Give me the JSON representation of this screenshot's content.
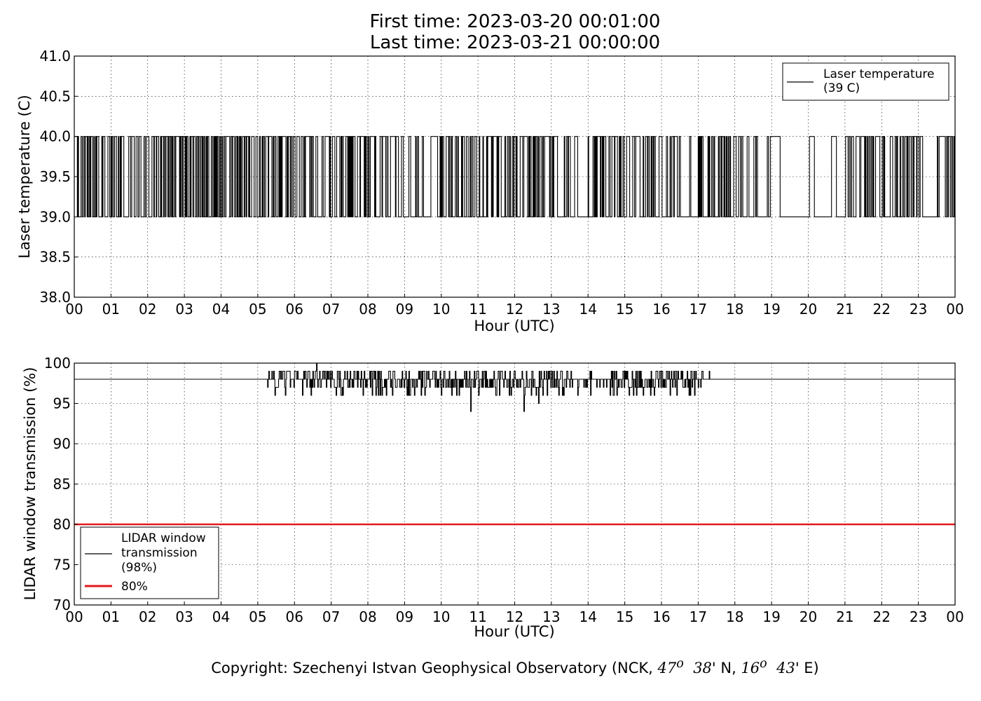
{
  "title_line1": "First time: 2023-03-20 00:01:00",
  "title_line2": "Last time: 2023-03-21 00:00:00",
  "copyright": {
    "prefix": "Copyright: Szechenyi Istvan Geophysical Observatory (NCK, ",
    "lat_deg": "47",
    "lat_min": "38",
    "lat_suffix": "' N, ",
    "lon_deg": "16",
    "lon_min": "43",
    "lon_suffix": "' E)",
    "degree_mark": "o"
  },
  "chart_data": [
    {
      "type": "line",
      "ylabel": "Laser temperature (C)",
      "xlabel": "Hour (UTC)",
      "xlim": [
        0,
        24
      ],
      "ylim": [
        38.0,
        41.0
      ],
      "x_ticks": [
        "00",
        "01",
        "02",
        "03",
        "04",
        "05",
        "06",
        "07",
        "08",
        "09",
        "10",
        "11",
        "12",
        "13",
        "14",
        "15",
        "16",
        "17",
        "18",
        "19",
        "20",
        "21",
        "22",
        "23",
        "00"
      ],
      "y_ticks": [
        "38.0",
        "38.5",
        "39.0",
        "39.5",
        "40.0",
        "40.5",
        "41.0"
      ],
      "grid": true,
      "legend_position": "top-right",
      "series": [
        {
          "name": "Laser temperature\n(39 C)",
          "color": "#000000",
          "description": "1-minute samples toggling between 39.0 and 40.0; sustained 39.0 around 19.3-20.0 h and 23.1-23.5 h",
          "levels": [
            39.0,
            40.0
          ],
          "density_by_hour": [
            0.9,
            0.75,
            0.85,
            0.8,
            0.9,
            0.7,
            0.6,
            0.8,
            0.5,
            0.4,
            0.7,
            0.9,
            0.85,
            0.5,
            0.9,
            0.6,
            0.45,
            0.8,
            0.7,
            0.25,
            0.05,
            0.7,
            0.6,
            0.7,
            0.35
          ],
          "steady_segments": [
            [
              19.3,
              20.0,
              39.0
            ],
            [
              23.1,
              23.5,
              39.0
            ]
          ]
        }
      ]
    },
    {
      "type": "line",
      "ylabel": "LIDAR window transmission (%)",
      "xlabel": "Hour (UTC)",
      "xlim": [
        0,
        24
      ],
      "ylim": [
        70,
        100
      ],
      "x_ticks": [
        "00",
        "01",
        "02",
        "03",
        "04",
        "05",
        "06",
        "07",
        "08",
        "09",
        "10",
        "11",
        "12",
        "13",
        "14",
        "15",
        "16",
        "17",
        "18",
        "19",
        "20",
        "21",
        "22",
        "23",
        "00"
      ],
      "y_ticks": [
        "70",
        "75",
        "80",
        "85",
        "90",
        "95",
        "100"
      ],
      "grid": true,
      "legend_position": "lower-left",
      "series": [
        {
          "name": "LIDAR window\ntransmission\n(98%)",
          "color": "#000000",
          "baseline": 98,
          "noisy_range": [
            4.9,
            17.3
          ],
          "spikes": [
            [
              6.6,
              100
            ],
            [
              10.8,
              94
            ],
            [
              12.25,
              94
            ],
            [
              12.65,
              95
            ],
            [
              9.45,
              96
            ],
            [
              13.3,
              96
            ],
            [
              15.8,
              96
            ]
          ]
        },
        {
          "name": "80%",
          "color": "#e31a1c",
          "threshold": 80
        }
      ]
    }
  ]
}
